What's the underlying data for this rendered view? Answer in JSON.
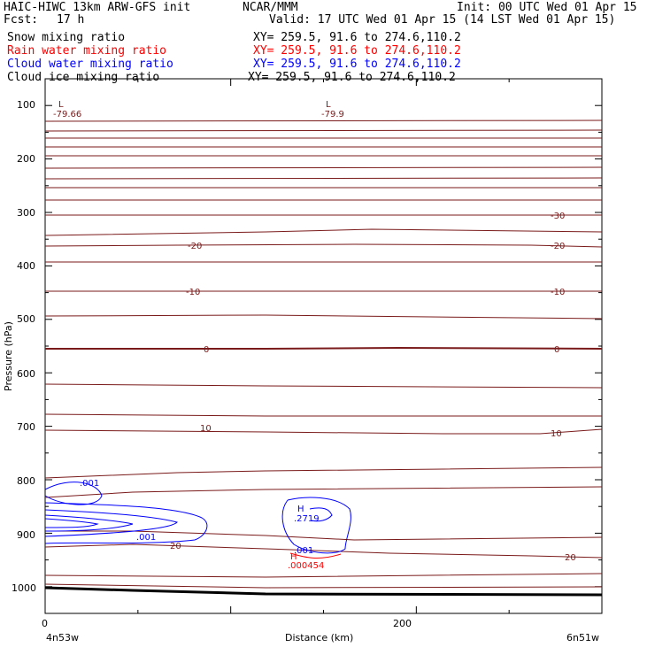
{
  "header": {
    "model": "HAIC-HIWC 13km ARW-GFS init",
    "org": "NCAR/MMM",
    "init": "Init: 00 UTC Wed 01 Apr 15",
    "fcst_label": "Fcst:",
    "fcst_value": "17 h",
    "valid": "Valid: 17 UTC Wed 01 Apr 15 (14 LST Wed 01 Apr 15)",
    "fields": [
      {
        "name": "Snow mixing ratio",
        "xy": "XY= 259.5, 91.6 to 274.6,110.2",
        "color": "#000000"
      },
      {
        "name": "Rain water mixing ratio",
        "xy": "XY= 259.5, 91.6 to 274.6,110.2",
        "color": "#ff0000"
      },
      {
        "name": "Cloud water mixing ratio",
        "xy": "XY= 259.5, 91.6 to 274.6,110.2",
        "color": "#0000ff"
      },
      {
        "name": "Cloud ice mixing ratio",
        "xy": "XY= 259.5, 91.6 to 274.6,110.2",
        "color": "#000000"
      }
    ]
  },
  "chart_data": {
    "type": "cross-section contour",
    "ylabel": "Pressure (hPa)",
    "xlabel": "Distance (km)",
    "y_ticks": [
      "100",
      "200",
      "300",
      "400",
      "500",
      "600",
      "700",
      "800",
      "900",
      "1000"
    ],
    "x_ticks": [
      "0",
      "200"
    ],
    "x_range": [
      0,
      300
    ],
    "y_range": [
      50,
      1050
    ],
    "left_endpoint": "4n53w",
    "right_endpoint": "6n51w",
    "temperature_labels": [
      "-30",
      "-20",
      "-10",
      "0",
      "10",
      "20",
      "-20",
      "-10",
      "0",
      "10",
      "20"
    ],
    "extrema": [
      {
        "mark": "L",
        "value": "-79.66"
      },
      {
        "mark": "L",
        "value": "-79.9"
      },
      {
        "mark": "H",
        "value": ".2719"
      },
      {
        "mark": "H",
        "value": ".000454"
      }
    ],
    "cloud_labels": [
      ".001",
      ".001",
      ".001"
    ],
    "colors": {
      "temperature": "#7a1a1a",
      "cloud_water": "#0000ff",
      "rain": "#ff0000",
      "axes": "#000000"
    }
  }
}
